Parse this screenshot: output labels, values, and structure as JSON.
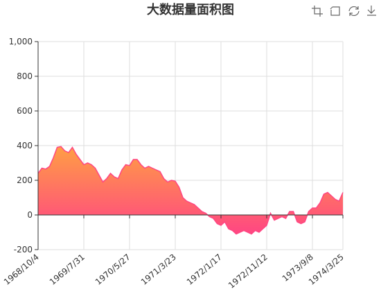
{
  "chart_data": {
    "type": "area",
    "title": "大数据量面积图",
    "categories": [
      "1968/10/4",
      null,
      null,
      null,
      null,
      null,
      null,
      null,
      null,
      null,
      null,
      null,
      "1969/7/31",
      null,
      null,
      null,
      null,
      null,
      null,
      null,
      null,
      null,
      null,
      null,
      "1970/5/27",
      null,
      null,
      null,
      null,
      null,
      null,
      null,
      null,
      null,
      null,
      null,
      "1971/3/23",
      null,
      null,
      null,
      null,
      null,
      null,
      null,
      null,
      null,
      null,
      null,
      "1972/1/17",
      null,
      null,
      null,
      null,
      null,
      null,
      null,
      null,
      null,
      null,
      null,
      "1972/11/12",
      null,
      null,
      null,
      null,
      null,
      null,
      null,
      null,
      null,
      null,
      null,
      "1973/9/8",
      null,
      null,
      null,
      null,
      null,
      null,
      null,
      "1974/3/25"
    ],
    "values": [
      240,
      270,
      265,
      280,
      330,
      390,
      395,
      370,
      360,
      390,
      350,
      320,
      290,
      300,
      290,
      270,
      230,
      190,
      210,
      240,
      220,
      210,
      260,
      290,
      285,
      320,
      320,
      290,
      270,
      280,
      270,
      260,
      250,
      210,
      190,
      200,
      195,
      160,
      100,
      80,
      70,
      60,
      40,
      20,
      10,
      -10,
      -20,
      -50,
      -60,
      -40,
      -80,
      -90,
      -110,
      -100,
      -90,
      -100,
      -110,
      -90,
      -100,
      -80,
      -60,
      10,
      -30,
      -20,
      -10,
      -20,
      20,
      20,
      -40,
      -50,
      -40,
      20,
      40,
      40,
      70,
      120,
      130,
      110,
      90,
      80,
      130
    ],
    "color": "#ff4683",
    "gradient": [
      "#ff9e44",
      "#ff4683"
    ],
    "ylim": [
      -200,
      1000
    ],
    "yticks": [
      -200,
      0,
      200,
      400,
      600,
      {
        "value": 800,
        "label": "800"
      },
      {
        "value": 1000,
        "label": "1,000"
      }
    ],
    "grid": true
  }
}
